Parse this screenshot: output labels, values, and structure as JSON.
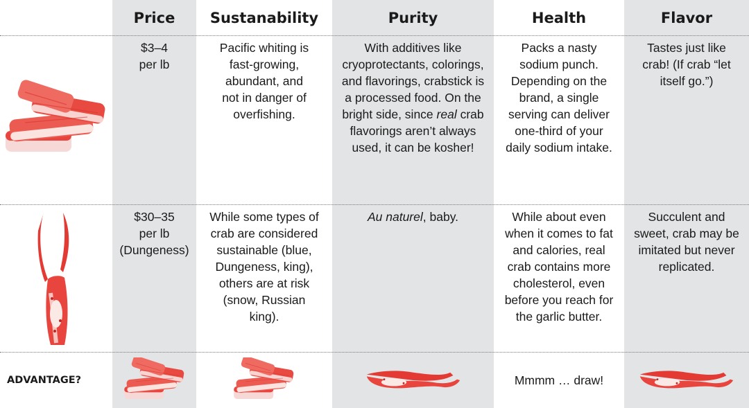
{
  "headers": {
    "price": "Price",
    "sustainability": "Sustanability",
    "purity": "Purity",
    "health": "Health",
    "flavor": "Flavor"
  },
  "rows": {
    "imitation": {
      "image_icon": "imitation-crab-stick-icon",
      "price_line1": "$3–4",
      "price_line2": "per lb",
      "sustainability": "Pacific whiting is fast-growing, abundant, and not in danger of overfishing.",
      "purity": "With additives like cryoprotectants, colorings, and flavorings, crabstick is a processed food. On the bright side, since",
      "purity_italic": "real",
      "purity_rest": "crab flavorings aren’t always used, it can be kosher!",
      "health": "Packs a nasty sodium punch. Depending on the brand, a single serving can deliver one-third of your daily sodium intake.",
      "flavor": "Tastes just like crab! (If crab “let itself go.”)"
    },
    "real": {
      "image_icon": "crab-claw-icon",
      "price_line1": "$30–35",
      "price_line2": "per lb",
      "price_line3": "(Dungeness)",
      "sustainability": "While some types of crab are considered sustainable (blue, Dungeness, king), others are at risk (snow, Russian king).",
      "purity_italic": "Au naturel",
      "purity_rest": ", baby.",
      "health": "While about even when it comes to fat and calories, real crab contains more cholesterol, even before you reach for the garlic butter.",
      "flavor": "Succulent and sweet, crab may be imitated but never replicated."
    }
  },
  "advantage": {
    "label": "ADVANTAGE?",
    "price_icon": "imitation-crab-stick-icon",
    "sustainability_icon": "imitation-crab-stick-icon",
    "purity_icon": "crab-claw-icon",
    "health": "Mmmm … draw!",
    "flavor_icon": "crab-claw-icon"
  },
  "colors": {
    "shade": "#e3e4e6",
    "crab_red": "#e8453f",
    "crab_light": "#f4a7a2"
  }
}
